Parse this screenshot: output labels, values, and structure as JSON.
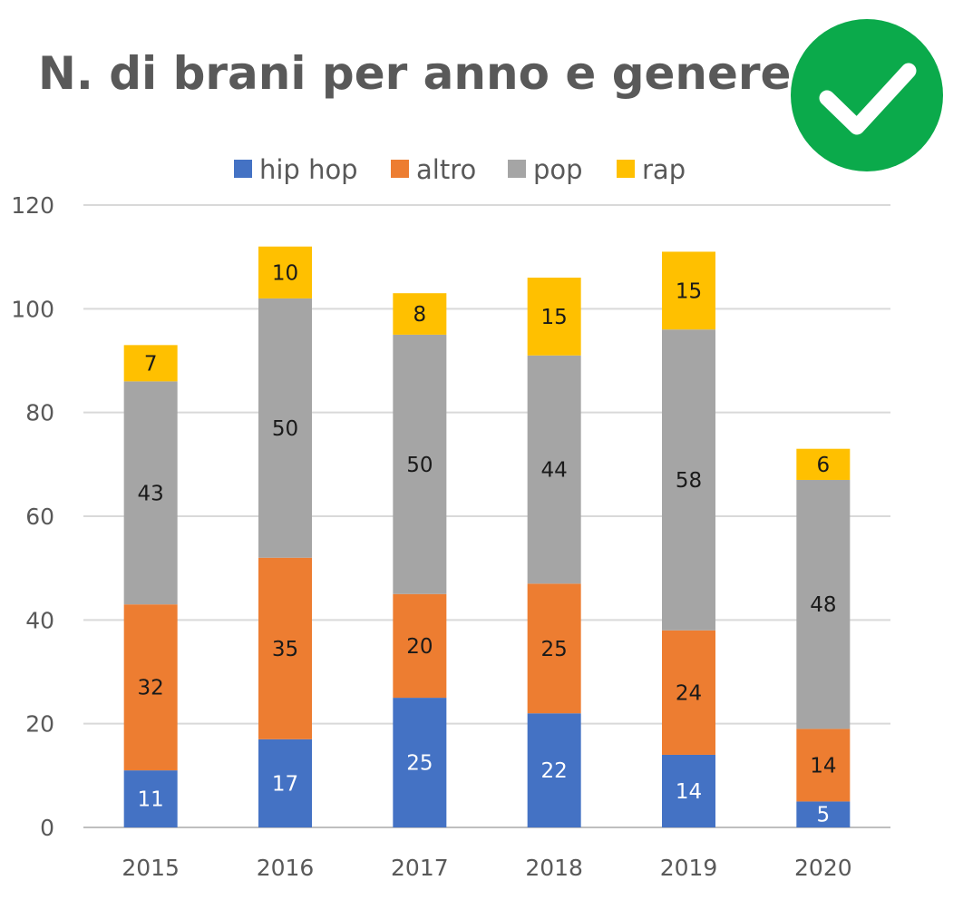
{
  "chart_data": {
    "type": "bar",
    "stacked": true,
    "title": "N. di brani per anno e genere",
    "categories": [
      "2015",
      "2016",
      "2017",
      "2018",
      "2019",
      "2020"
    ],
    "series": [
      {
        "name": "hip hop",
        "color": "#4472C4",
        "label_color": "#ffffff",
        "values": [
          11,
          17,
          25,
          22,
          14,
          5
        ]
      },
      {
        "name": "altro",
        "color": "#ED7D31",
        "label_color": "#1a1a1a",
        "values": [
          32,
          35,
          20,
          25,
          24,
          14
        ]
      },
      {
        "name": "pop",
        "color": "#A5A5A5",
        "label_color": "#1a1a1a",
        "values": [
          43,
          50,
          50,
          44,
          58,
          48
        ]
      },
      {
        "name": "rap",
        "color": "#FFC000",
        "label_color": "#1a1a1a",
        "values": [
          7,
          10,
          8,
          15,
          15,
          6
        ]
      }
    ],
    "ylim": [
      0,
      120
    ],
    "yticks": [
      0,
      20,
      40,
      60,
      80,
      100,
      120
    ],
    "grid": true,
    "legend": "top",
    "badge": {
      "icon": "checkmark-icon",
      "color": "#0BAA4B"
    }
  }
}
